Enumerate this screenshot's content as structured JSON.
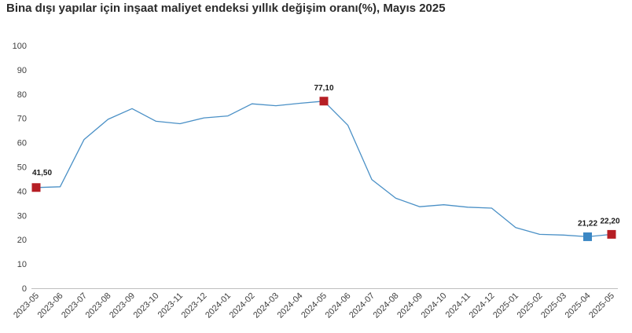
{
  "chart_data": {
    "type": "line",
    "title": "Bina dışı yapılar için inşaat maliyet endeksi yıllık değişim oranı(%), Mayıs 2025",
    "xlabel": "",
    "ylabel": "",
    "ylim": [
      0,
      100
    ],
    "yticks": [
      "0",
      "10",
      "20",
      "30",
      "40",
      "50",
      "60",
      "70",
      "80",
      "90",
      "100"
    ],
    "categories": [
      "2023-05",
      "2023-06",
      "2023-07",
      "2023-08",
      "2023-09",
      "2023-10",
      "2023-11",
      "2023-12",
      "2024-01",
      "2024-02",
      "2024-03",
      "2024-04",
      "2024-05",
      "2024-06",
      "2024-07",
      "2024-08",
      "2024-09",
      "2024-10",
      "2024-11",
      "2024-12",
      "2025-01",
      "2025-02",
      "2025-03",
      "2025-04",
      "2025-05"
    ],
    "series": [
      {
        "values": [
          41.5,
          41.8,
          61.3,
          69.6,
          74.0,
          68.8,
          67.8,
          70.2,
          71.0,
          76.0,
          75.2,
          76.2,
          77.1,
          67.2,
          44.8,
          37.1,
          33.6,
          34.4,
          33.4,
          33.0,
          25.0,
          22.2,
          21.9,
          21.22,
          22.2
        ],
        "color": "#4a90c6"
      }
    ],
    "data_labels": [
      {
        "index": 0,
        "text": "41,50",
        "marker_color": "#b61e24"
      },
      {
        "index": 12,
        "text": "77,10",
        "marker_color": "#b61e24"
      },
      {
        "index": 23,
        "text": "21,22",
        "marker_color": "#3b87c4"
      },
      {
        "index": 24,
        "text": "22,20",
        "marker_color": "#b61e24"
      }
    ],
    "grid": false,
    "legend": "none"
  }
}
